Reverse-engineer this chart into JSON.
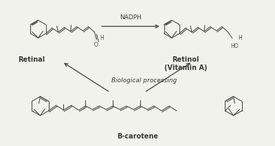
{
  "bg_color": "#f2f2ed",
  "line_color": "#4a4a4a",
  "text_color": "#3a3a3a",
  "arrow_color": "#4a4a4a",
  "label_retinal": "Retinal",
  "label_retinol": "Retinol\n(Vitamin A)",
  "label_bcarotene": "B-carotene",
  "label_nadph": "NADPH",
  "label_bio": "Biological processing",
  "fontsize_label": 7,
  "fontsize_arrow_label": 6.5,
  "fontsize_chem": 5.5
}
